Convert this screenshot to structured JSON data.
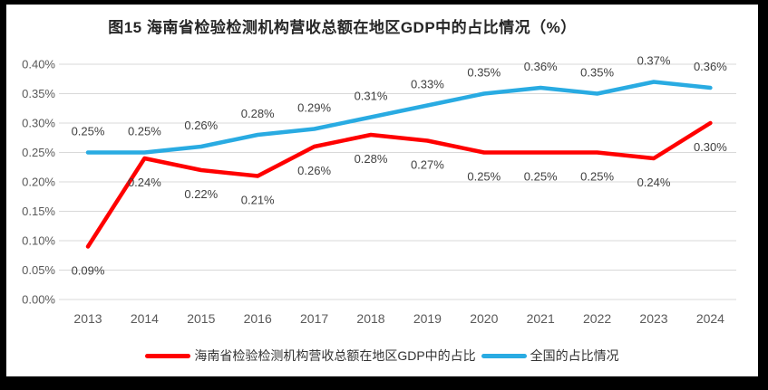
{
  "chart_data": {
    "type": "line",
    "title": "图15 海南省检验检测机构营收总额在地区GDP中的占比情况（%）",
    "categories": [
      "2013",
      "2014",
      "2015",
      "2016",
      "2017",
      "2018",
      "2019",
      "2020",
      "2021",
      "2022",
      "2023",
      "2024"
    ],
    "series": [
      {
        "name": "海南省检验检测机构营收总额在地区GDP中的占比",
        "color": "#FF0000",
        "values": [
          0.09,
          0.24,
          0.22,
          0.21,
          0.26,
          0.28,
          0.27,
          0.25,
          0.25,
          0.25,
          0.24,
          0.3
        ],
        "data_labels": [
          "0.09%",
          "0.24%",
          "0.22%",
          "0.21%",
          "0.26%",
          "0.28%",
          "0.27%",
          "0.25%",
          "0.25%",
          "0.25%",
          "0.24%",
          "0.30%"
        ],
        "label_position": "below"
      },
      {
        "name": "全国的占比情况",
        "color": "#29ABE2",
        "values": [
          0.25,
          0.25,
          0.26,
          0.28,
          0.29,
          0.31,
          0.33,
          0.35,
          0.36,
          0.35,
          0.37,
          0.36
        ],
        "data_labels": [
          "0.25%",
          "0.25%",
          "0.26%",
          "0.28%",
          "0.29%",
          "0.31%",
          "0.33%",
          "0.35%",
          "0.36%",
          "0.35%",
          "0.37%",
          "0.36%"
        ],
        "label_position": "above"
      }
    ],
    "ylim": [
      0,
      0.4
    ],
    "ytick_step": 0.05,
    "ytick_labels": [
      "0.00%",
      "0.05%",
      "0.10%",
      "0.15%",
      "0.20%",
      "0.25%",
      "0.30%",
      "0.35%",
      "0.40%"
    ],
    "grid": true,
    "legend_position": "bottom"
  },
  "colors": {
    "frame_background": "#000000",
    "panel_background": "#FFFFFF",
    "gridline": "#D9D9D9",
    "tick_label": "#595959",
    "data_label": "#404040",
    "title_text": "#262626",
    "series_hainan": "#FF0000",
    "series_national": "#29ABE2"
  }
}
